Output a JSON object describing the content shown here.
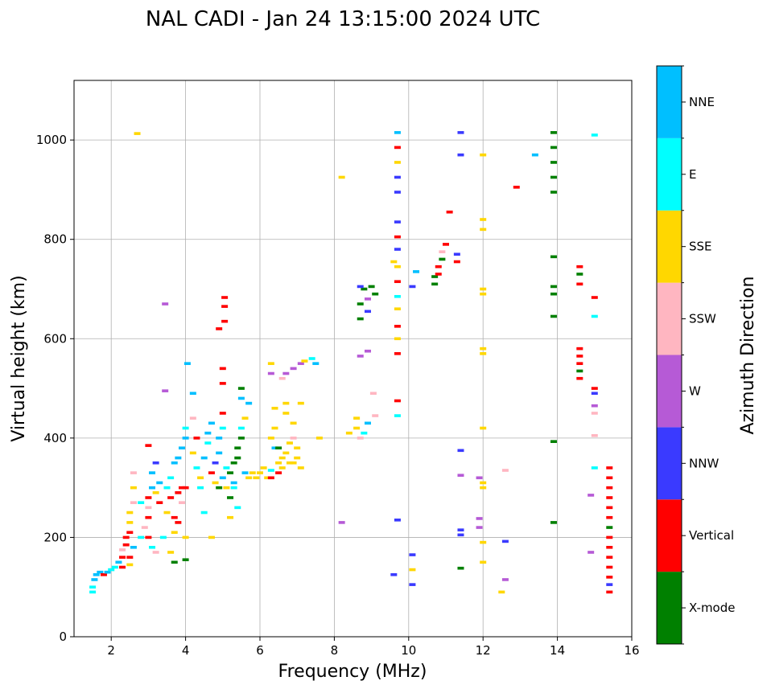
{
  "chart_data": {
    "type": "scatter",
    "title": "NAL CADI - Jan 24 13:15:00 2024 UTC",
    "xlabel": "Frequency (MHz)",
    "ylabel": "Virtual height (km)",
    "xlim": [
      1,
      16
    ],
    "ylim": [
      0,
      1120
    ],
    "xticks": [
      2,
      4,
      6,
      8,
      10,
      12,
      14,
      16
    ],
    "yticks": [
      0,
      200,
      400,
      600,
      800,
      1000
    ],
    "grid": true,
    "colorbar": {
      "label": "Azimuth Direction",
      "categories": [
        {
          "name": "X-mode",
          "color": "#008000"
        },
        {
          "name": "Vertical",
          "color": "#ff0000"
        },
        {
          "name": "NNW",
          "color": "#3a3aff"
        },
        {
          "name": "W",
          "color": "#b65ad6"
        },
        {
          "name": "SSW",
          "color": "#ffb6c1"
        },
        {
          "name": "SSE",
          "color": "#ffd700"
        },
        {
          "name": "E",
          "color": "#00ffff"
        },
        {
          "name": "NNE",
          "color": "#00bfff"
        }
      ]
    },
    "points": [
      [
        1.5,
        90,
        "E"
      ],
      [
        1.5,
        100,
        "E"
      ],
      [
        1.55,
        115,
        "NNE"
      ],
      [
        1.6,
        125,
        "NNE"
      ],
      [
        1.7,
        130,
        "NNE"
      ],
      [
        1.8,
        125,
        "Vertical"
      ],
      [
        1.9,
        130,
        "NNE"
      ],
      [
        2.0,
        135,
        "E"
      ],
      [
        2.1,
        140,
        "E"
      ],
      [
        2.2,
        150,
        "NNE"
      ],
      [
        2.3,
        140,
        "Vertical"
      ],
      [
        2.3,
        160,
        "Vertical"
      ],
      [
        2.3,
        175,
        "SSW"
      ],
      [
        2.4,
        185,
        "Vertical"
      ],
      [
        2.4,
        200,
        "Vertical"
      ],
      [
        2.5,
        210,
        "Vertical"
      ],
      [
        2.5,
        230,
        "SSE"
      ],
      [
        2.5,
        250,
        "SSE"
      ],
      [
        2.6,
        270,
        "SSW"
      ],
      [
        2.6,
        300,
        "SSE"
      ],
      [
        2.6,
        330,
        "SSW"
      ],
      [
        2.5,
        160,
        "Vertical"
      ],
      [
        2.6,
        180,
        "NNE"
      ],
      [
        2.5,
        145,
        "SSE"
      ],
      [
        2.8,
        200,
        "E"
      ],
      [
        2.9,
        220,
        "SSW"
      ],
      [
        3.0,
        240,
        "Vertical"
      ],
      [
        3.0,
        260,
        "SSW"
      ],
      [
        3.0,
        280,
        "Vertical"
      ],
      [
        3.1,
        300,
        "NNE"
      ],
      [
        3.1,
        330,
        "NNE"
      ],
      [
        3.2,
        350,
        "NNW"
      ],
      [
        3.2,
        290,
        "SSE"
      ],
      [
        3.3,
        270,
        "Vertical"
      ],
      [
        3.0,
        385,
        "Vertical"
      ],
      [
        3.1,
        180,
        "E"
      ],
      [
        3.2,
        170,
        "SSW"
      ],
      [
        3.4,
        200,
        "E"
      ],
      [
        3.0,
        200,
        "Vertical"
      ],
      [
        2.8,
        270,
        "E"
      ],
      [
        3.3,
        310,
        "NNE"
      ],
      [
        3.45,
        495,
        "W"
      ],
      [
        3.45,
        670,
        "W"
      ],
      [
        3.5,
        250,
        "SSE"
      ],
      [
        3.5,
        300,
        "E"
      ],
      [
        3.6,
        280,
        "Vertical"
      ],
      [
        3.6,
        320,
        "E"
      ],
      [
        3.7,
        350,
        "NNE"
      ],
      [
        3.7,
        240,
        "Vertical"
      ],
      [
        3.7,
        210,
        "SSE"
      ],
      [
        3.8,
        360,
        "NNE"
      ],
      [
        3.8,
        290,
        "Vertical"
      ],
      [
        3.9,
        300,
        "Vertical"
      ],
      [
        3.9,
        270,
        "SSW"
      ],
      [
        3.9,
        380,
        "NNE"
      ],
      [
        4.0,
        400,
        "NNE"
      ],
      [
        4.0,
        420,
        "E"
      ],
      [
        4.0,
        300,
        "Vertical"
      ],
      [
        4.0,
        200,
        "SSE"
      ],
      [
        4.0,
        155,
        "X-mode"
      ],
      [
        3.7,
        150,
        "X-mode"
      ],
      [
        3.6,
        170,
        "SSE"
      ],
      [
        3.8,
        230,
        "Vertical"
      ],
      [
        4.05,
        550,
        "NNE"
      ],
      [
        4.2,
        490,
        "NNE"
      ],
      [
        4.2,
        440,
        "SSW"
      ],
      [
        4.2,
        370,
        "SSE"
      ],
      [
        4.3,
        400,
        "Vertical"
      ],
      [
        4.3,
        340,
        "E"
      ],
      [
        4.4,
        320,
        "SSE"
      ],
      [
        4.4,
        300,
        "E"
      ],
      [
        4.5,
        250,
        "E"
      ],
      [
        4.5,
        360,
        "NNE"
      ],
      [
        4.6,
        390,
        "E"
      ],
      [
        4.6,
        410,
        "NNE"
      ],
      [
        4.7,
        430,
        "NNE"
      ],
      [
        4.7,
        330,
        "Vertical"
      ],
      [
        4.8,
        350,
        "NNW"
      ],
      [
        4.8,
        310,
        "SSE"
      ],
      [
        4.9,
        300,
        "X-mode"
      ],
      [
        4.9,
        370,
        "NNE"
      ],
      [
        4.9,
        400,
        "NNE"
      ],
      [
        5.0,
        420,
        "E"
      ],
      [
        5.0,
        450,
        "Vertical"
      ],
      [
        5.0,
        510,
        "Vertical"
      ],
      [
        5.0,
        540,
        "Vertical"
      ],
      [
        4.9,
        620,
        "Vertical"
      ],
      [
        5.05,
        635,
        "Vertical"
      ],
      [
        5.05,
        665,
        "Vertical"
      ],
      [
        5.05,
        683,
        "Vertical"
      ],
      [
        4.7,
        200,
        "SSE"
      ],
      [
        5.2,
        240,
        "SSE"
      ],
      [
        5.0,
        320,
        "NNE"
      ],
      [
        5.1,
        340,
        "E"
      ],
      [
        5.1,
        300,
        "SSE"
      ],
      [
        5.2,
        330,
        "X-mode"
      ],
      [
        5.2,
        280,
        "X-mode"
      ],
      [
        5.3,
        310,
        "NNE"
      ],
      [
        5.3,
        350,
        "X-mode"
      ],
      [
        5.4,
        360,
        "X-mode"
      ],
      [
        5.4,
        380,
        "X-mode"
      ],
      [
        5.5,
        400,
        "X-mode"
      ],
      [
        5.5,
        420,
        "E"
      ],
      [
        5.6,
        440,
        "SSE"
      ],
      [
        5.6,
        330,
        "NNE"
      ],
      [
        5.7,
        320,
        "SSE"
      ],
      [
        5.8,
        330,
        "SSE"
      ],
      [
        5.5,
        500,
        "X-mode"
      ],
      [
        5.5,
        480,
        "NNE"
      ],
      [
        5.7,
        470,
        "NNE"
      ],
      [
        5.3,
        300,
        "E"
      ],
      [
        5.4,
        260,
        "E"
      ],
      [
        5.9,
        320,
        "SSE"
      ],
      [
        6.0,
        330,
        "SSE"
      ],
      [
        6.1,
        340,
        "SSE"
      ],
      [
        6.2,
        320,
        "SSE"
      ],
      [
        6.3,
        335,
        "E"
      ],
      [
        6.3,
        400,
        "SSE"
      ],
      [
        6.4,
        420,
        "SSE"
      ],
      [
        6.4,
        460,
        "SSE"
      ],
      [
        6.4,
        380,
        "NNE"
      ],
      [
        6.5,
        350,
        "SSE"
      ],
      [
        6.5,
        330,
        "Vertical"
      ],
      [
        6.6,
        340,
        "SSE"
      ],
      [
        6.6,
        360,
        "SSE"
      ],
      [
        6.7,
        370,
        "SSE"
      ],
      [
        6.7,
        450,
        "SSE"
      ],
      [
        6.7,
        470,
        "SSE"
      ],
      [
        6.8,
        350,
        "SSE"
      ],
      [
        6.8,
        390,
        "SSE"
      ],
      [
        6.9,
        400,
        "SSW"
      ],
      [
        6.9,
        430,
        "SSE"
      ],
      [
        6.9,
        350,
        "SSE"
      ],
      [
        7.0,
        360,
        "SSE"
      ],
      [
        7.0,
        380,
        "SSE"
      ],
      [
        7.1,
        340,
        "SSE"
      ],
      [
        7.1,
        470,
        "SSE"
      ],
      [
        6.3,
        550,
        "SSE"
      ],
      [
        6.3,
        530,
        "W"
      ],
      [
        6.6,
        520,
        "SSW"
      ],
      [
        6.7,
        530,
        "W"
      ],
      [
        6.9,
        540,
        "W"
      ],
      [
        7.1,
        550,
        "W"
      ],
      [
        7.2,
        555,
        "SSE"
      ],
      [
        7.4,
        560,
        "E"
      ],
      [
        7.5,
        550,
        "NNE"
      ],
      [
        7.6,
        400,
        "SSE"
      ],
      [
        6.3,
        320,
        "Vertical"
      ],
      [
        6.5,
        380,
        "X-mode"
      ],
      [
        8.2,
        230,
        "W"
      ],
      [
        8.2,
        925,
        "SSE"
      ],
      [
        8.4,
        410,
        "SSE"
      ],
      [
        8.6,
        440,
        "SSE"
      ],
      [
        8.6,
        420,
        "SSE"
      ],
      [
        8.7,
        400,
        "SSW"
      ],
      [
        8.8,
        410,
        "E"
      ],
      [
        8.9,
        430,
        "NNE"
      ],
      [
        8.7,
        565,
        "W"
      ],
      [
        8.9,
        575,
        "W"
      ],
      [
        8.7,
        640,
        "X-mode"
      ],
      [
        8.7,
        670,
        "X-mode"
      ],
      [
        8.8,
        700,
        "X-mode"
      ],
      [
        8.9,
        680,
        "W"
      ],
      [
        8.9,
        655,
        "NNW"
      ],
      [
        9.0,
        705,
        "X-mode"
      ],
      [
        9.1,
        690,
        "X-mode"
      ],
      [
        9.05,
        490,
        "SSW"
      ],
      [
        8.7,
        705,
        "NNW"
      ],
      [
        9.1,
        445,
        "SSW"
      ],
      [
        9.6,
        125,
        "NNW"
      ],
      [
        9.7,
        235,
        "NNW"
      ],
      [
        9.7,
        445,
        "E"
      ],
      [
        9.7,
        475,
        "Vertical"
      ],
      [
        9.7,
        570,
        "Vertical"
      ],
      [
        9.7,
        600,
        "SSE"
      ],
      [
        9.7,
        625,
        "Vertical"
      ],
      [
        9.7,
        660,
        "SSE"
      ],
      [
        9.7,
        685,
        "E"
      ],
      [
        9.7,
        715,
        "Vertical"
      ],
      [
        9.7,
        745,
        "SSE"
      ],
      [
        9.7,
        780,
        "NNW"
      ],
      [
        9.7,
        805,
        "Vertical"
      ],
      [
        9.7,
        835,
        "NNW"
      ],
      [
        9.7,
        895,
        "NNW"
      ],
      [
        9.7,
        925,
        "NNW"
      ],
      [
        9.7,
        955,
        "SSE"
      ],
      [
        9.7,
        985,
        "Vertical"
      ],
      [
        9.7,
        1015,
        "NNE"
      ],
      [
        9.6,
        755,
        "SSE"
      ],
      [
        10.1,
        105,
        "NNW"
      ],
      [
        10.1,
        135,
        "SSE"
      ],
      [
        10.1,
        165,
        "NNW"
      ],
      [
        10.1,
        705,
        "NNW"
      ],
      [
        10.2,
        735,
        "NNE"
      ],
      [
        10.7,
        710,
        "X-mode"
      ],
      [
        10.7,
        725,
        "X-mode"
      ],
      [
        10.8,
        745,
        "Vertical"
      ],
      [
        10.8,
        730,
        "Vertical"
      ],
      [
        10.9,
        760,
        "X-mode"
      ],
      [
        10.9,
        775,
        "SSW"
      ],
      [
        11.0,
        790,
        "Vertical"
      ],
      [
        11.1,
        855,
        "Vertical"
      ],
      [
        11.3,
        755,
        "Vertical"
      ],
      [
        11.3,
        770,
        "NNW"
      ],
      [
        11.4,
        138,
        "X-mode"
      ],
      [
        11.4,
        205,
        "NNW"
      ],
      [
        11.4,
        215,
        "NNW"
      ],
      [
        11.4,
        325,
        "W"
      ],
      [
        11.4,
        375,
        "NNW"
      ],
      [
        11.4,
        970,
        "NNW"
      ],
      [
        11.4,
        1015,
        "NNW"
      ],
      [
        11.9,
        220,
        "W"
      ],
      [
        11.9,
        238,
        "W"
      ],
      [
        11.9,
        320,
        "W"
      ],
      [
        12.0,
        150,
        "SSE"
      ],
      [
        12.0,
        190,
        "SSE"
      ],
      [
        12.0,
        300,
        "SSE"
      ],
      [
        12.0,
        310,
        "SSE"
      ],
      [
        12.0,
        420,
        "SSE"
      ],
      [
        12.0,
        570,
        "SSE"
      ],
      [
        12.0,
        580,
        "SSE"
      ],
      [
        12.0,
        690,
        "SSE"
      ],
      [
        12.0,
        700,
        "SSE"
      ],
      [
        12.0,
        820,
        "SSE"
      ],
      [
        12.0,
        840,
        "SSE"
      ],
      [
        12.0,
        970,
        "SSE"
      ],
      [
        12.5,
        90,
        "SSE"
      ],
      [
        12.6,
        115,
        "W"
      ],
      [
        12.6,
        192,
        "NNW"
      ],
      [
        12.6,
        335,
        "SSW"
      ],
      [
        12.9,
        905,
        "Vertical"
      ],
      [
        13.4,
        970,
        "NNE"
      ],
      [
        13.9,
        230,
        "X-mode"
      ],
      [
        13.9,
        393,
        "X-mode"
      ],
      [
        13.9,
        645,
        "X-mode"
      ],
      [
        13.9,
        690,
        "X-mode"
      ],
      [
        13.9,
        705,
        "X-mode"
      ],
      [
        13.9,
        765,
        "X-mode"
      ],
      [
        13.9,
        895,
        "X-mode"
      ],
      [
        13.9,
        925,
        "X-mode"
      ],
      [
        13.9,
        955,
        "X-mode"
      ],
      [
        13.9,
        985,
        "X-mode"
      ],
      [
        13.9,
        1015,
        "X-mode"
      ],
      [
        14.6,
        520,
        "Vertical"
      ],
      [
        14.6,
        535,
        "X-mode"
      ],
      [
        14.6,
        550,
        "Vertical"
      ],
      [
        14.6,
        565,
        "Vertical"
      ],
      [
        14.6,
        580,
        "Vertical"
      ],
      [
        14.6,
        710,
        "Vertical"
      ],
      [
        14.6,
        730,
        "X-mode"
      ],
      [
        14.6,
        745,
        "Vertical"
      ],
      [
        14.9,
        170,
        "W"
      ],
      [
        14.9,
        285,
        "W"
      ],
      [
        15.0,
        340,
        "E"
      ],
      [
        15.0,
        405,
        "SSW"
      ],
      [
        15.0,
        450,
        "SSW"
      ],
      [
        15.0,
        465,
        "W"
      ],
      [
        15.0,
        490,
        "NNW"
      ],
      [
        15.0,
        500,
        "Vertical"
      ],
      [
        15.0,
        645,
        "E"
      ],
      [
        15.0,
        683,
        "Vertical"
      ],
      [
        15.0,
        1010,
        "E"
      ],
      [
        15.4,
        90,
        "Vertical"
      ],
      [
        15.4,
        105,
        "NNW"
      ],
      [
        15.4,
        120,
        "Vertical"
      ],
      [
        15.4,
        140,
        "Vertical"
      ],
      [
        15.4,
        160,
        "Vertical"
      ],
      [
        15.4,
        180,
        "Vertical"
      ],
      [
        15.4,
        200,
        "Vertical"
      ],
      [
        15.4,
        220,
        "X-mode"
      ],
      [
        15.4,
        240,
        "Vertical"
      ],
      [
        15.4,
        260,
        "Vertical"
      ],
      [
        15.4,
        280,
        "Vertical"
      ],
      [
        15.4,
        300,
        "Vertical"
      ],
      [
        15.4,
        320,
        "Vertical"
      ],
      [
        15.4,
        340,
        "Vertical"
      ],
      [
        2.7,
        1013,
        "SSE"
      ]
    ]
  }
}
